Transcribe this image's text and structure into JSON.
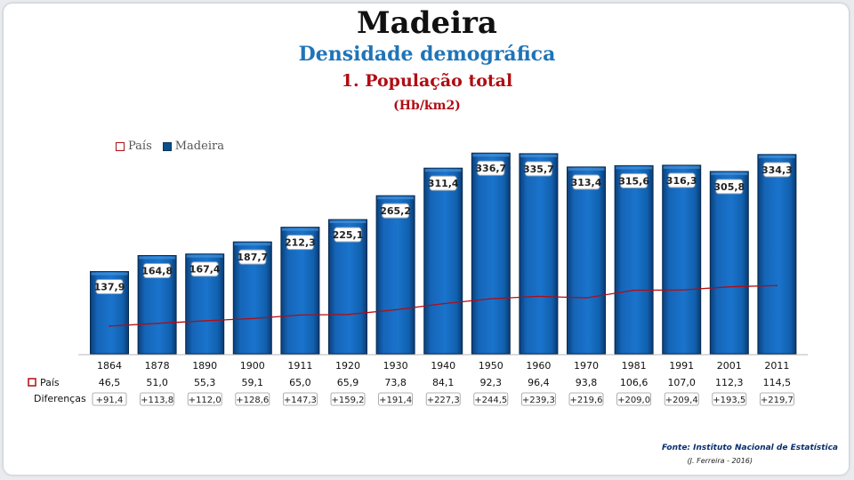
{
  "title": "Madeira",
  "subtitle": "Densidade demográfica",
  "subtitle2": "1. População total",
  "units": "(Hb/km2)",
  "legend": {
    "pais": "País",
    "madeira": "Madeira"
  },
  "rows": {
    "pais_label": "País",
    "diff_label": "Diferenças"
  },
  "source": {
    "line1": "Fonte: Instituto Nacional de Estatística",
    "line2": "(J. Ferreira - 2016)"
  },
  "colors": {
    "madeira_bar": "#1565b8",
    "pais_line": "#b00d14",
    "title_blue": "#1f74b8",
    "title_red": "#b00d14"
  },
  "chart_data": {
    "type": "bar",
    "categories": [
      "1864",
      "1878",
      "1890",
      "1900",
      "1911",
      "1920",
      "1930",
      "1940",
      "1950",
      "1960",
      "1970",
      "1981",
      "1991",
      "2001",
      "2011"
    ],
    "series": [
      {
        "name": "Madeira",
        "values": [
          137.9,
          164.8,
          167.4,
          187.7,
          212.3,
          225.1,
          265.2,
          311.4,
          336.7,
          335.7,
          313.4,
          315.6,
          316.3,
          305.8,
          334.3
        ],
        "labels": [
          "137,9",
          "164,8",
          "167,4",
          "187,7",
          "212,3",
          "225,1",
          "265,2",
          "311,4",
          "336,7",
          "335,7",
          "313,4",
          "315,6",
          "316,3",
          "305,8",
          "334,3"
        ]
      },
      {
        "name": "País",
        "type": "line",
        "values": [
          46.5,
          51.0,
          55.3,
          59.1,
          65.0,
          65.9,
          73.8,
          84.1,
          92.3,
          96.4,
          93.8,
          106.6,
          107.0,
          112.3,
          114.5
        ],
        "labels": [
          "46,5",
          "51,0",
          "55,3",
          "59,1",
          "65,0",
          "65,9",
          "73,8",
          "84,1",
          "92,3",
          "96,4",
          "93,8",
          "106,6",
          "107,0",
          "112,3",
          "114,5"
        ]
      }
    ],
    "differences": [
      "+91,4",
      "+113,8",
      "+112,0",
      "+128,6",
      "+147,3",
      "+159,2",
      "+191,4",
      "+227,3",
      "+244,5",
      "+239,3",
      "+219,6",
      "+209,0",
      "+209,4",
      "+193,5",
      "+219,7"
    ],
    "ylim": [
      0,
      340
    ],
    "grid": false,
    "legend_position": "top-left"
  }
}
